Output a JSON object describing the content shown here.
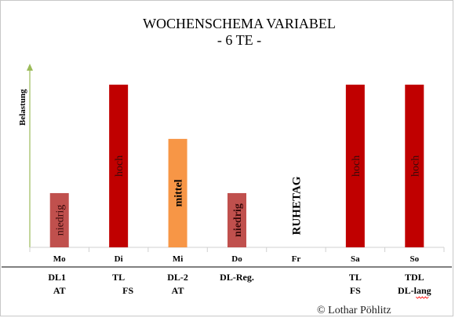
{
  "chart_data": {
    "type": "bar",
    "title": "WOCHENSCHEMA VARIABEL",
    "subtitle": "- 6 TE -",
    "ylabel": "Belastung",
    "categories": [
      "Mo",
      "Di",
      "Mi",
      "Do",
      "Fr",
      "Sa",
      "So"
    ],
    "values": [
      1,
      3,
      2,
      1,
      0,
      3,
      3
    ],
    "ylim": [
      0,
      3.2
    ],
    "bar_labels": [
      "niedrig",
      "hoch",
      "mittel",
      "niedrig",
      "RUHETAG",
      "hoch",
      "hoch"
    ],
    "bar_colors": [
      "#c0504d",
      "#c00000",
      "#f79646",
      "#c0504d",
      "#ffffff",
      "#c00000",
      "#c00000"
    ],
    "axis_color": "#9bbb59",
    "training_rows": [
      [
        "DL1",
        "TL",
        "DL-2",
        "DL-Reg.",
        "",
        "TL",
        "TDL"
      ],
      [
        "AT",
        "FS",
        "AT",
        "",
        "",
        "FS",
        "DL-lang"
      ]
    ],
    "grid": false
  },
  "footer": {
    "copyright": "© Lothar Pöhlitz"
  }
}
